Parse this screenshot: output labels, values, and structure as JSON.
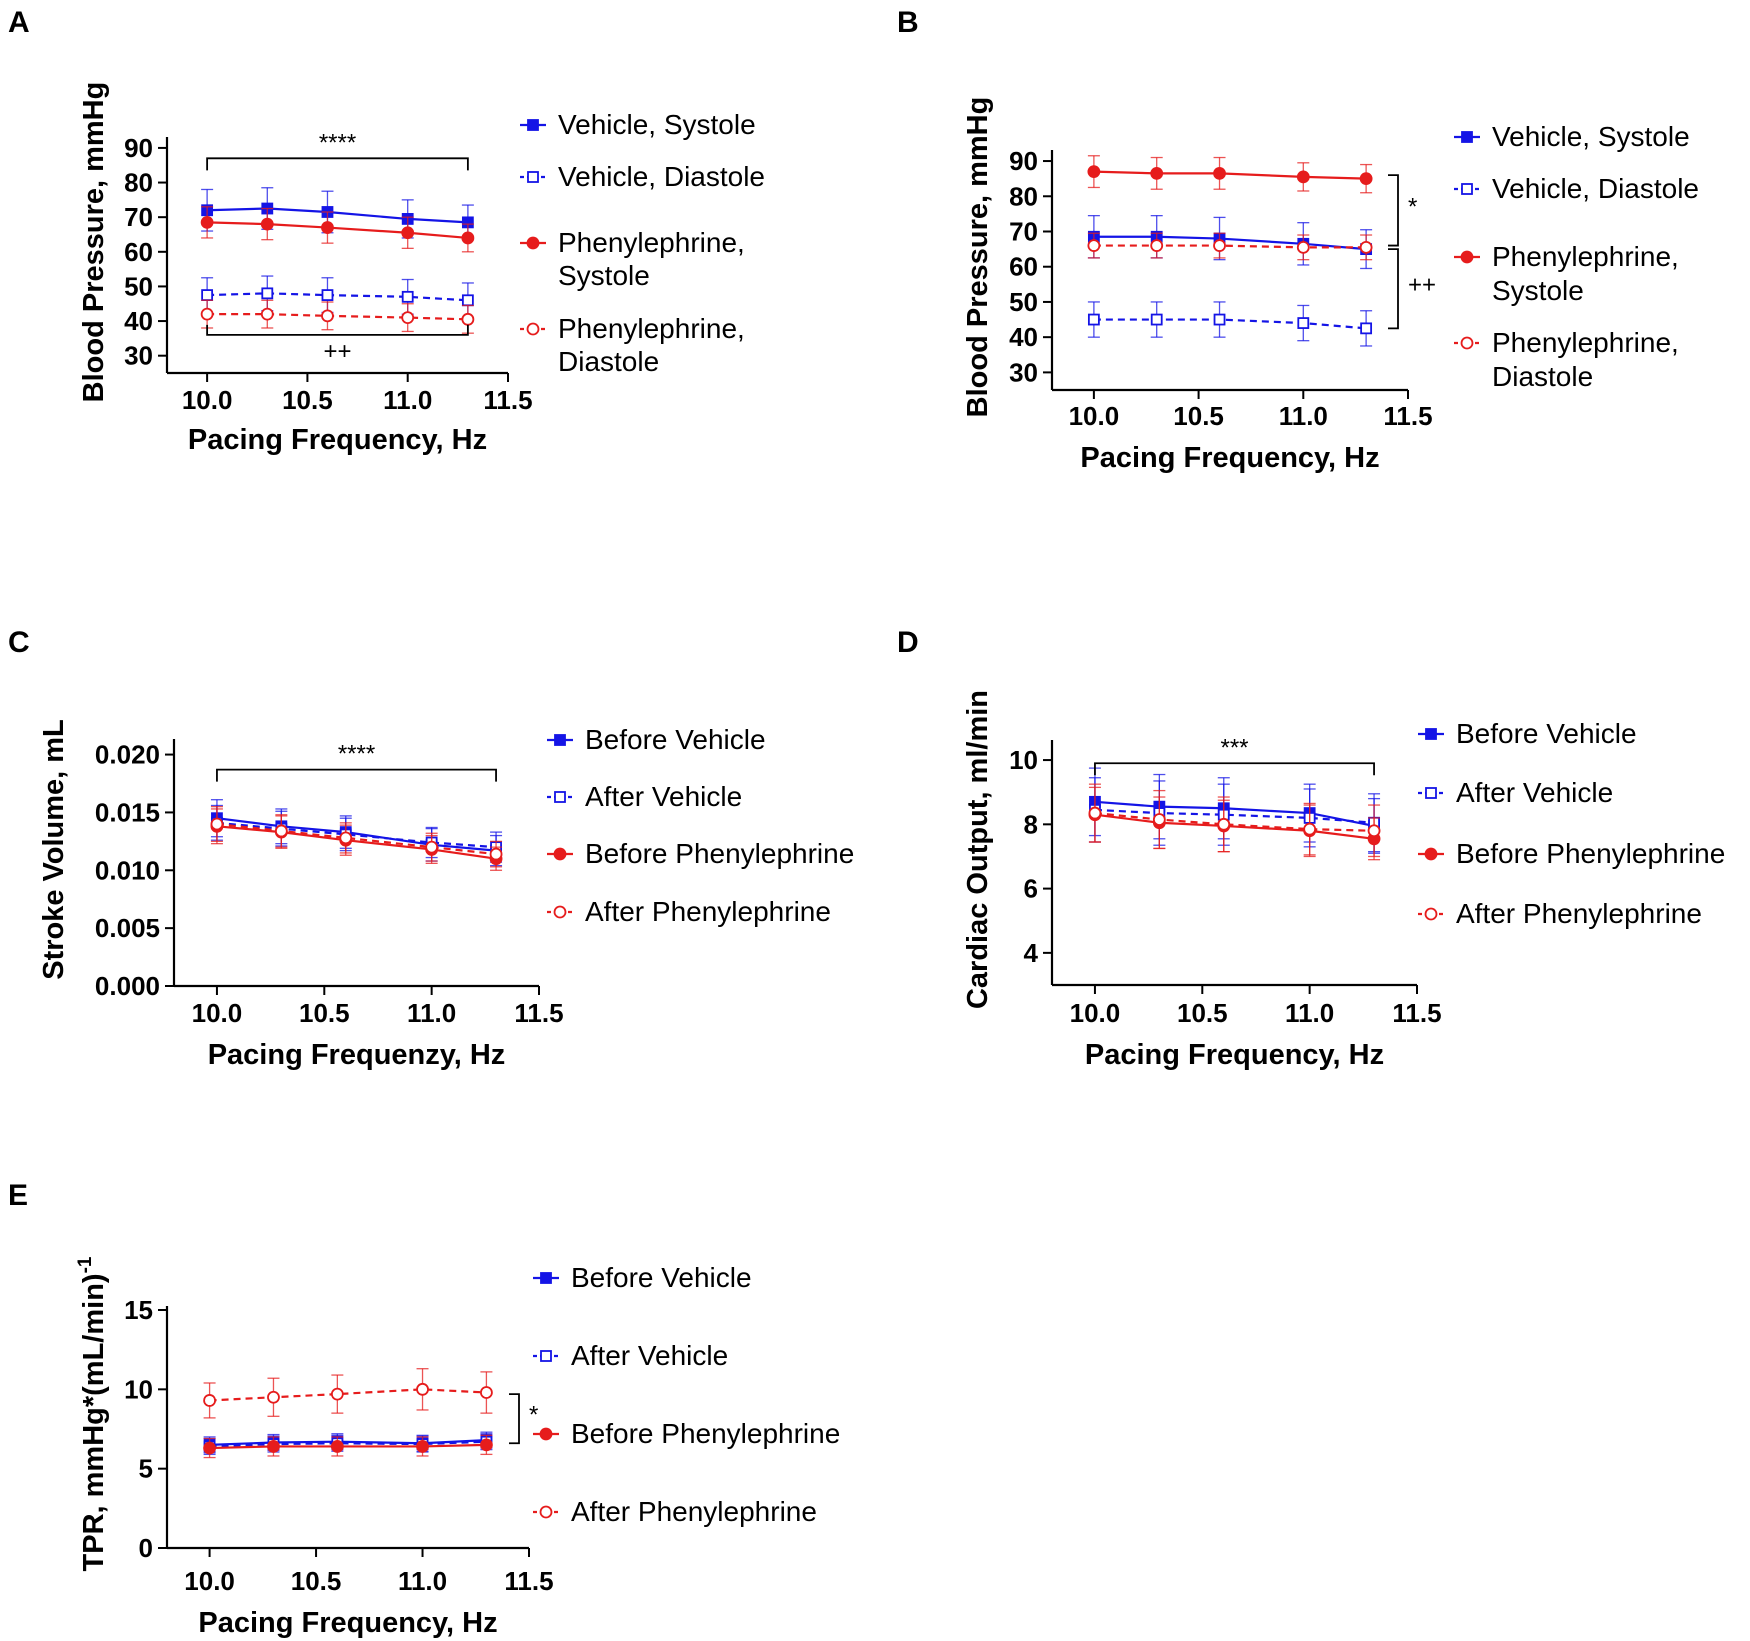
{
  "figure": {
    "background": "#ffffff",
    "colors": {
      "vehicle": "#1414e6",
      "phenylephrine": "#e61c1c",
      "axis": "#000000"
    }
  },
  "chart_data": [
    {
      "id": "A",
      "panel_label": "A",
      "type": "line",
      "xlabel": "Pacing Frequency, Hz",
      "ylabel": "Blood Pressure, mmHg",
      "xlim": [
        9.8,
        11.5
      ],
      "ylim": [
        25,
        92
      ],
      "xticks": [
        10.0,
        10.5,
        11.0,
        11.5
      ],
      "xtick_labels": [
        "10.0",
        "10.5",
        "11.0",
        "11.5"
      ],
      "yticks": [
        30,
        40,
        50,
        60,
        70,
        80,
        90
      ],
      "ytick_labels": [
        "30",
        "40",
        "50",
        "60",
        "70",
        "80",
        "90"
      ],
      "x": [
        10.0,
        10.3,
        10.6,
        11.0,
        11.3
      ],
      "series": [
        {
          "name": "Vehicle, Systole",
          "legend_lines": [
            "Vehicle, Systole"
          ],
          "color": "#1414e6",
          "dashed": false,
          "marker": "square",
          "filled": true,
          "values": [
            72,
            72.5,
            71.5,
            69.5,
            68.5
          ],
          "error": [
            6,
            6,
            6,
            5.5,
            5
          ]
        },
        {
          "name": "Vehicle, Diastole",
          "legend_lines": [
            "Vehicle, Diastole"
          ],
          "color": "#1414e6",
          "dashed": true,
          "marker": "square",
          "filled": false,
          "values": [
            47.5,
            48,
            47.5,
            47,
            46
          ],
          "error": [
            5,
            5,
            5,
            5,
            5
          ]
        },
        {
          "name": "Phenylephrine, Systole",
          "legend_lines": [
            "Phenylephrine,",
            "Systole"
          ],
          "color": "#e61c1c",
          "dashed": false,
          "marker": "circle",
          "filled": true,
          "values": [
            68.5,
            68,
            67,
            65.5,
            64
          ],
          "error": [
            4.5,
            4.5,
            4.5,
            4.5,
            4
          ]
        },
        {
          "name": "Phenylephrine, Diastole",
          "legend_lines": [
            "Phenylephrine,",
            "Diastole"
          ],
          "color": "#e61c1c",
          "dashed": true,
          "marker": "circle",
          "filled": false,
          "values": [
            42,
            42,
            41.5,
            41,
            40.5
          ],
          "error": [
            4,
            4,
            4,
            4,
            4
          ]
        }
      ],
      "annotations": [
        {
          "kind": "bracket-top",
          "label": "****",
          "x_from": 10.0,
          "x_to": 11.3,
          "y": 87
        },
        {
          "kind": "bracket-bottom",
          "label": "++",
          "x_from": 10.0,
          "x_to": 11.3,
          "y": 36
        }
      ],
      "legend_position": "right"
    },
    {
      "id": "B",
      "panel_label": "B",
      "type": "line",
      "xlabel": "Pacing Frequency, Hz",
      "ylabel": "Blood Pressure, mmHg",
      "xlim": [
        9.8,
        11.5
      ],
      "ylim": [
        25,
        92
      ],
      "xticks": [
        10.0,
        10.5,
        11.0,
        11.5
      ],
      "xtick_labels": [
        "10.0",
        "10.5",
        "11.0",
        "11.5"
      ],
      "yticks": [
        30,
        40,
        50,
        60,
        70,
        80,
        90
      ],
      "ytick_labels": [
        "30",
        "40",
        "50",
        "60",
        "70",
        "80",
        "90"
      ],
      "x": [
        10.0,
        10.3,
        10.6,
        11.0,
        11.3
      ],
      "series": [
        {
          "name": "Vehicle, Systole",
          "legend_lines": [
            "Vehicle, Systole"
          ],
          "color": "#1414e6",
          "dashed": false,
          "marker": "square",
          "filled": true,
          "values": [
            68.5,
            68.5,
            68,
            66.5,
            65
          ],
          "error": [
            6,
            6,
            6,
            6,
            5.5
          ]
        },
        {
          "name": "Vehicle, Diastole",
          "legend_lines": [
            "Vehicle, Diastole"
          ],
          "color": "#1414e6",
          "dashed": true,
          "marker": "square",
          "filled": false,
          "values": [
            45,
            45,
            45,
            44,
            42.5
          ],
          "error": [
            5,
            5,
            5,
            5,
            5
          ]
        },
        {
          "name": "Phenylephrine, Systole",
          "legend_lines": [
            "Phenylephrine,",
            "Systole"
          ],
          "color": "#e61c1c",
          "dashed": false,
          "marker": "circle",
          "filled": true,
          "values": [
            87,
            86.5,
            86.5,
            85.5,
            85
          ],
          "error": [
            4.5,
            4.5,
            4.5,
            4,
            4
          ]
        },
        {
          "name": "Phenylephrine, Diastole",
          "legend_lines": [
            "Phenylephrine,",
            "Diastole"
          ],
          "color": "#e61c1c",
          "dashed": true,
          "marker": "circle",
          "filled": false,
          "values": [
            66,
            66,
            66,
            65.5,
            65.5
          ],
          "error": [
            3.5,
            3.5,
            3.5,
            3.5,
            3.5
          ]
        }
      ],
      "annotations": [
        {
          "kind": "bracket-right",
          "label": "*",
          "y_from": 86,
          "y_to": 66
        },
        {
          "kind": "bracket-right",
          "label": "++",
          "y_from": 65,
          "y_to": 42.5
        }
      ],
      "legend_position": "right"
    },
    {
      "id": "C",
      "panel_label": "C",
      "type": "line",
      "xlabel": "Pacing Frequenzy, Hz",
      "ylabel": "Stroke Volume, mL",
      "xlim": [
        9.8,
        11.5
      ],
      "ylim": [
        0,
        0.021
      ],
      "xticks": [
        10.0,
        10.5,
        11.0,
        11.5
      ],
      "xtick_labels": [
        "10.0",
        "10.5",
        "11.0",
        "11.5"
      ],
      "yticks": [
        0,
        0.005,
        0.01,
        0.015,
        0.02
      ],
      "ytick_labels": [
        "0.000",
        "0.005",
        "0.010",
        "0.015",
        "0.020"
      ],
      "x": [
        10.0,
        10.3,
        10.6,
        11.0,
        11.3
      ],
      "series": [
        {
          "name": "Before Vehicle",
          "legend_lines": [
            "Before Vehicle"
          ],
          "color": "#1414e6",
          "dashed": false,
          "marker": "square",
          "filled": true,
          "values": [
            0.0145,
            0.0138,
            0.0133,
            0.0122,
            0.0117
          ],
          "error": [
            0.0016,
            0.0015,
            0.0014,
            0.0014,
            0.0013
          ]
        },
        {
          "name": "After Vehicle",
          "legend_lines": [
            "After Vehicle"
          ],
          "color": "#1414e6",
          "dashed": true,
          "marker": "square",
          "filled": false,
          "values": [
            0.0141,
            0.0136,
            0.0131,
            0.0124,
            0.012
          ],
          "error": [
            0.0015,
            0.0015,
            0.0014,
            0.0013,
            0.0013
          ]
        },
        {
          "name": "Before Phenylephrine",
          "legend_lines": [
            "Before Phenylephrine"
          ],
          "color": "#e61c1c",
          "dashed": false,
          "marker": "circle",
          "filled": true,
          "values": [
            0.0138,
            0.0133,
            0.0126,
            0.0118,
            0.011
          ],
          "error": [
            0.0015,
            0.0014,
            0.0013,
            0.0012,
            0.001
          ]
        },
        {
          "name": "After Phenylephrine",
          "legend_lines": [
            "After  Phenylephrine"
          ],
          "color": "#e61c1c",
          "dashed": true,
          "marker": "circle",
          "filled": false,
          "values": [
            0.014,
            0.0134,
            0.0128,
            0.012,
            0.0114
          ],
          "error": [
            0.0015,
            0.0014,
            0.0013,
            0.0012,
            0.0011
          ]
        }
      ],
      "annotations": [
        {
          "kind": "bracket-top",
          "label": "****",
          "x_from": 10.0,
          "x_to": 11.3,
          "y": 0.0187
        }
      ],
      "legend_position": "right"
    },
    {
      "id": "D",
      "panel_label": "D",
      "type": "line",
      "xlabel": "Pacing Frequency, Hz",
      "ylabel": "Cardiac Output, ml/min",
      "xlim": [
        9.8,
        11.5
      ],
      "ylim": [
        3,
        10.5
      ],
      "xticks": [
        10.0,
        10.5,
        11.0,
        11.5
      ],
      "xtick_labels": [
        "10.0",
        "10.5",
        "11.0",
        "11.5"
      ],
      "yticks": [
        4,
        6,
        8,
        10
      ],
      "ytick_labels": [
        "4",
        "6",
        "8",
        "10"
      ],
      "x": [
        10.0,
        10.3,
        10.6,
        11.0,
        11.3
      ],
      "series": [
        {
          "name": "Before Vehicle",
          "legend_lines": [
            "Before Vehicle"
          ],
          "color": "#1414e6",
          "dashed": false,
          "marker": "square",
          "filled": true,
          "values": [
            8.7,
            8.55,
            8.5,
            8.35,
            7.95
          ],
          "error": [
            1.05,
            1.0,
            0.95,
            0.9,
            0.85
          ]
        },
        {
          "name": "After Vehicle",
          "legend_lines": [
            "After Vehicle"
          ],
          "color": "#1414e6",
          "dashed": true,
          "marker": "square",
          "filled": false,
          "values": [
            8.45,
            8.35,
            8.3,
            8.2,
            8.05
          ],
          "error": [
            1.0,
            1.0,
            0.95,
            0.9,
            0.9
          ]
        },
        {
          "name": "Before Phenylephrine",
          "legend_lines": [
            "Before Phenylephrine"
          ],
          "color": "#e61c1c",
          "dashed": false,
          "marker": "circle",
          "filled": true,
          "values": [
            8.3,
            8.05,
            7.95,
            7.8,
            7.55
          ],
          "error": [
            0.85,
            0.8,
            0.8,
            0.8,
            0.65
          ]
        },
        {
          "name": "After Phenylephrine",
          "legend_lines": [
            "After  Phenylephrine"
          ],
          "color": "#e61c1c",
          "dashed": true,
          "marker": "circle",
          "filled": false,
          "values": [
            8.35,
            8.15,
            8.0,
            7.85,
            7.8
          ],
          "error": [
            0.9,
            0.9,
            0.85,
            0.8,
            0.8
          ]
        }
      ],
      "annotations": [
        {
          "kind": "bracket-top",
          "label": "***",
          "x_from": 10.0,
          "x_to": 11.3,
          "y": 9.9
        }
      ],
      "legend_position": "right"
    },
    {
      "id": "E",
      "panel_label": "E",
      "type": "line",
      "xlabel": "Pacing Frequency, Hz",
      "ylabel": "TPR, mmHg*(mL/min)",
      "ylabel_superscript": "-1",
      "xlim": [
        9.8,
        11.5
      ],
      "ylim": [
        0,
        15
      ],
      "xticks": [
        10.0,
        10.5,
        11.0,
        11.5
      ],
      "xtick_labels": [
        "10.0",
        "10.5",
        "11.0",
        "11.5"
      ],
      "yticks": [
        0,
        5,
        10,
        15
      ],
      "ytick_labels": [
        "0",
        "5",
        "10",
        "15"
      ],
      "x": [
        10.0,
        10.3,
        10.6,
        11.0,
        11.3
      ],
      "series": [
        {
          "name": "Before Vehicle",
          "legend_lines": [
            "Before Vehicle"
          ],
          "color": "#1414e6",
          "dashed": false,
          "marker": "square",
          "filled": true,
          "values": [
            6.5,
            6.65,
            6.7,
            6.6,
            6.8
          ],
          "error": [
            0.5,
            0.5,
            0.5,
            0.5,
            0.5
          ]
        },
        {
          "name": "After Vehicle",
          "legend_lines": [
            "After Vehicle"
          ],
          "color": "#1414e6",
          "dashed": true,
          "marker": "square",
          "filled": false,
          "values": [
            6.4,
            6.55,
            6.6,
            6.55,
            6.7
          ],
          "error": [
            0.5,
            0.5,
            0.5,
            0.5,
            0.5
          ]
        },
        {
          "name": "Before Phenylephrine",
          "legend_lines": [
            "Before Phenylephrine"
          ],
          "color": "#e61c1c",
          "dashed": false,
          "marker": "circle",
          "filled": true,
          "values": [
            6.3,
            6.4,
            6.4,
            6.4,
            6.5
          ],
          "error": [
            0.6,
            0.6,
            0.6,
            0.6,
            0.6
          ]
        },
        {
          "name": "After Phenylephrine",
          "legend_lines": [
            "After  Phenylephrine"
          ],
          "color": "#e61c1c",
          "dashed": true,
          "marker": "circle",
          "filled": false,
          "values": [
            9.3,
            9.5,
            9.7,
            10.0,
            9.8
          ],
          "error": [
            1.1,
            1.2,
            1.2,
            1.3,
            1.3
          ]
        }
      ],
      "annotations": [
        {
          "kind": "bracket-right",
          "label": "*",
          "y_from": 9.7,
          "y_to": 6.6
        }
      ],
      "legend_position": "right"
    }
  ]
}
